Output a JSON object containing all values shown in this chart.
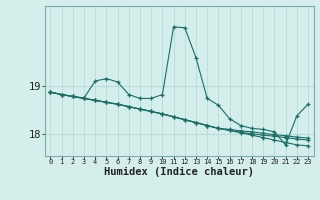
{
  "xlabel": "Humidex (Indice chaleur)",
  "bg_color": "#d4eeec",
  "line_color": "#1a6e66",
  "grid_color": "#b8dbd8",
  "x_values": [
    0,
    1,
    2,
    3,
    4,
    5,
    6,
    7,
    8,
    9,
    10,
    11,
    12,
    13,
    14,
    15,
    16,
    17,
    18,
    19,
    20,
    21,
    22,
    23
  ],
  "series": [
    [
      18.87,
      18.82,
      18.78,
      18.75,
      19.1,
      19.15,
      19.08,
      18.82,
      18.74,
      18.74,
      18.82,
      20.22,
      20.2,
      19.58,
      18.74,
      18.6,
      18.32,
      18.18,
      18.12,
      18.1,
      18.05,
      17.78,
      18.38,
      18.62
    ],
    [
      18.87,
      18.82,
      18.78,
      18.74,
      18.7,
      18.66,
      18.62,
      18.57,
      18.52,
      18.47,
      18.42,
      18.36,
      18.3,
      18.24,
      18.18,
      18.12,
      18.08,
      18.03,
      17.98,
      17.93,
      17.88,
      17.83,
      17.78,
      17.76
    ],
    [
      18.87,
      18.82,
      18.78,
      18.74,
      18.7,
      18.66,
      18.62,
      18.57,
      18.52,
      18.47,
      18.42,
      18.36,
      18.3,
      18.24,
      18.18,
      18.12,
      18.08,
      18.04,
      18.01,
      17.98,
      17.96,
      17.93,
      17.9,
      17.88
    ],
    [
      18.87,
      18.82,
      18.78,
      18.74,
      18.7,
      18.66,
      18.62,
      18.57,
      18.52,
      18.47,
      18.42,
      18.36,
      18.3,
      18.24,
      18.18,
      18.12,
      18.1,
      18.07,
      18.05,
      18.02,
      17.99,
      17.97,
      17.94,
      17.92
    ]
  ],
  "yticks": [
    18,
    19
  ],
  "ylim": [
    17.55,
    20.65
  ],
  "xlim": [
    -0.5,
    23.5
  ],
  "xtick_labels": [
    "0",
    "1",
    "2",
    "3",
    "4",
    "5",
    "6",
    "7",
    "8",
    "9",
    "10",
    "11",
    "12",
    "13",
    "14",
    "15",
    "16",
    "17",
    "18",
    "19",
    "20",
    "21",
    "22",
    "23"
  ]
}
